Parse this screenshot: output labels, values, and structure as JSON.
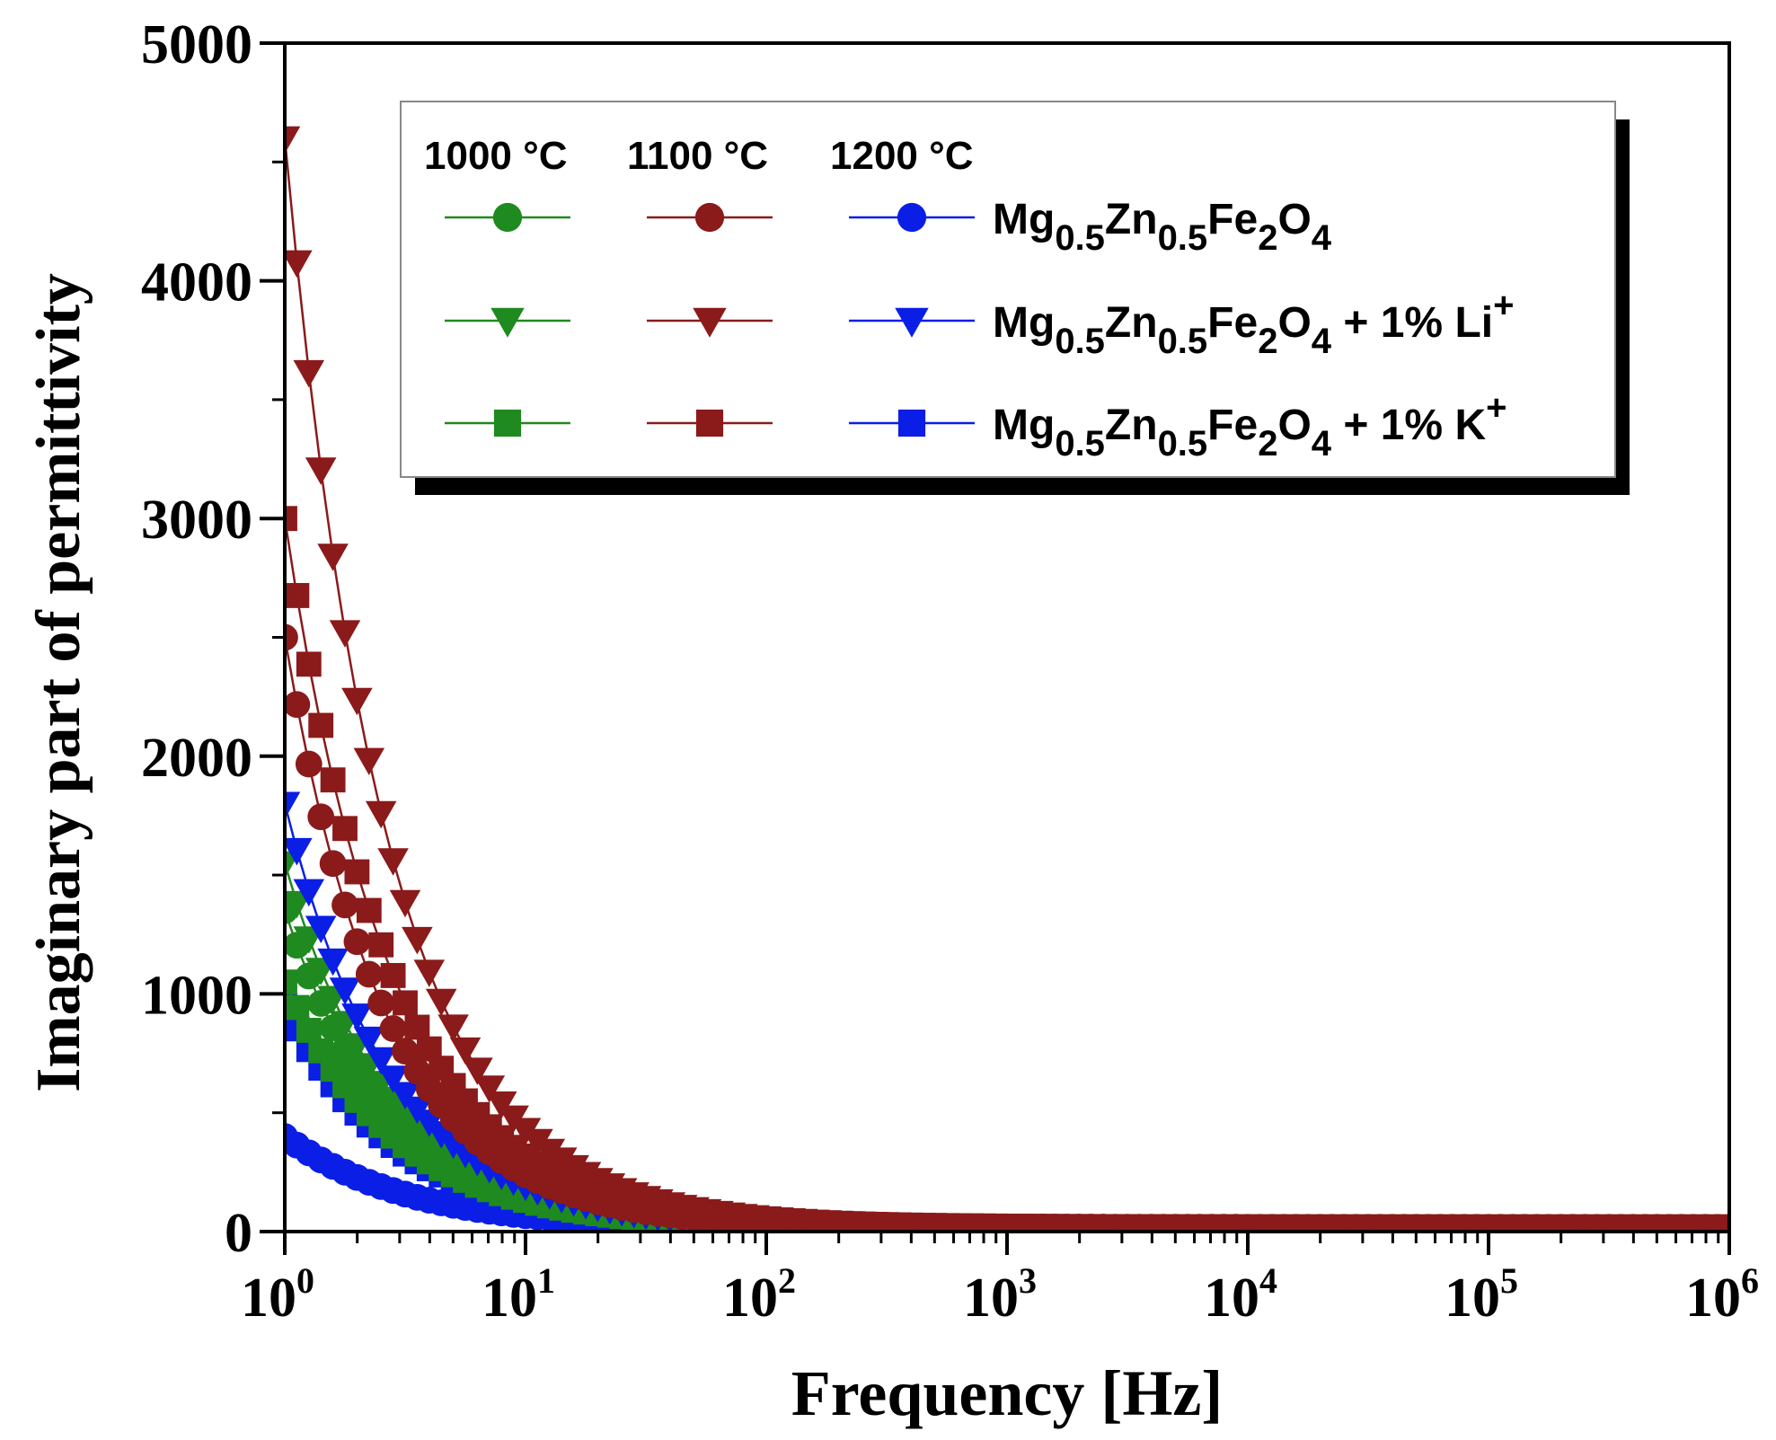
{
  "chart_data": {
    "type": "scatter",
    "xlabel": "Frequency [Hz]",
    "ylabel": "Imaginary part of permittivity",
    "x_scale": "log",
    "xlim": [
      1,
      1000000
    ],
    "ylim": [
      0,
      5000
    ],
    "y_ticks": [
      0,
      1000,
      2000,
      3000,
      4000,
      5000
    ],
    "y_tick_labels": [
      "0",
      "1000",
      "2000",
      "3000",
      "4000",
      "5000"
    ],
    "x_ticks": [
      1,
      10,
      100,
      1000,
      10000,
      100000,
      1000000
    ],
    "x_tick_labels": [
      {
        "base": "10",
        "exp": "0"
      },
      {
        "base": "10",
        "exp": "1"
      },
      {
        "base": "10",
        "exp": "2"
      },
      {
        "base": "10",
        "exp": "3"
      },
      {
        "base": "10",
        "exp": "4"
      },
      {
        "base": "10",
        "exp": "5"
      },
      {
        "base": "10",
        "exp": "6"
      }
    ],
    "points_per_decade": 20,
    "legend": {
      "placement": "top-right",
      "column_headers": [
        "1000 °C",
        "1100 °C",
        "1200 °C"
      ],
      "rows": [
        {
          "marker": "circle",
          "label_parts": [
            {
              "t": "Mg",
              "sub": false
            },
            {
              "t": "0.5",
              "sub": true
            },
            {
              "t": "Zn",
              "sub": false
            },
            {
              "t": "0.5",
              "sub": true
            },
            {
              "t": "Fe",
              "sub": false
            },
            {
              "t": "2",
              "sub": true
            },
            {
              "t": "O",
              "sub": false
            },
            {
              "t": "4",
              "sub": true
            }
          ]
        },
        {
          "marker": "triangle-down",
          "label_parts": [
            {
              "t": "Mg",
              "sub": false
            },
            {
              "t": "0.5",
              "sub": true
            },
            {
              "t": "Zn",
              "sub": false
            },
            {
              "t": "0.5",
              "sub": true
            },
            {
              "t": "Fe",
              "sub": false
            },
            {
              "t": "2",
              "sub": true
            },
            {
              "t": "O",
              "sub": false
            },
            {
              "t": "4",
              "sub": true
            },
            {
              "t": " + 1% Li",
              "sub": false
            },
            {
              "t": "+",
              "sup": true
            }
          ]
        },
        {
          "marker": "square",
          "label_parts": [
            {
              "t": "Mg",
              "sub": false
            },
            {
              "t": "0.5",
              "sub": true
            },
            {
              "t": "Zn",
              "sub": false
            },
            {
              "t": "0.5",
              "sub": true
            },
            {
              "t": "Fe",
              "sub": false
            },
            {
              "t": "2",
              "sub": true
            },
            {
              "t": "O",
              "sub": false
            },
            {
              "t": "4",
              "sub": true
            },
            {
              "t": " + 1% K",
              "sub": false
            },
            {
              "t": "+",
              "sup": true
            }
          ]
        }
      ]
    },
    "series": [
      {
        "name": "Mg0.5Zn0.5Fe2O4 1000 °C",
        "temperature": "1000 °C",
        "composition": "Mg0.5Zn0.5Fe2O4",
        "marker": "circle",
        "color": "#1f8a1f",
        "value_at_1Hz": 1350,
        "decay_exponent": 1.0,
        "floor": 15
      },
      {
        "name": "Mg0.5Zn0.5Fe2O4 + 1% Li+ 1000 °C",
        "temperature": "1000 °C",
        "composition": "Mg0.5Zn0.5Fe2O4 + 1% Li+",
        "marker": "triangle-down",
        "color": "#1f8a1f",
        "value_at_1Hz": 1550,
        "decay_exponent": 1.0,
        "floor": 15
      },
      {
        "name": "Mg0.5Zn0.5Fe2O4 + 1% K+ 1000 °C",
        "temperature": "1000 °C",
        "composition": "Mg0.5Zn0.5Fe2O4 + 1% K+",
        "marker": "square",
        "color": "#1f8a1f",
        "value_at_1Hz": 1050,
        "decay_exponent": 0.95,
        "floor": 15
      },
      {
        "name": "Mg0.5Zn0.5Fe2O4 1100 °C",
        "temperature": "1100 °C",
        "composition": "Mg0.5Zn0.5Fe2O4",
        "marker": "circle",
        "color": "#8b1a1a",
        "value_at_1Hz": 2500,
        "decay_exponent": 1.05,
        "floor": 18
      },
      {
        "name": "Mg0.5Zn0.5Fe2O4 + 1% Li+ 1100 °C",
        "temperature": "1100 °C",
        "composition": "Mg0.5Zn0.5Fe2O4 + 1% Li+",
        "marker": "triangle-down",
        "color": "#8b1a1a",
        "value_at_1Hz": 4600,
        "decay_exponent": 1.05,
        "floor": 20
      },
      {
        "name": "Mg0.5Zn0.5Fe2O4 + 1% K+ 1100 °C",
        "temperature": "1100 °C",
        "composition": "Mg0.5Zn0.5Fe2O4 + 1% K+",
        "marker": "square",
        "color": "#8b1a1a",
        "value_at_1Hz": 3000,
        "decay_exponent": 1.0,
        "floor": 20
      },
      {
        "name": "Mg0.5Zn0.5Fe2O4 1200 °C",
        "temperature": "1200 °C",
        "composition": "Mg0.5Zn0.5Fe2O4",
        "marker": "circle",
        "color": "#0a1ee6",
        "value_at_1Hz": 400,
        "decay_exponent": 0.85,
        "floor": 12
      },
      {
        "name": "Mg0.5Zn0.5Fe2O4 + 1% Li+ 1200 °C",
        "temperature": "1200 °C",
        "composition": "Mg0.5Zn0.5Fe2O4 + 1% Li+",
        "marker": "triangle-down",
        "color": "#0a1ee6",
        "value_at_1Hz": 1800,
        "decay_exponent": 1.0,
        "floor": 15
      },
      {
        "name": "Mg0.5Zn0.5Fe2O4 + 1% K+ 1200 °C",
        "temperature": "1200 °C",
        "composition": "Mg0.5Zn0.5Fe2O4 + 1% K+",
        "marker": "square",
        "color": "#0a1ee6",
        "value_at_1Hz": 950,
        "decay_exponent": 0.95,
        "floor": 12
      }
    ]
  }
}
